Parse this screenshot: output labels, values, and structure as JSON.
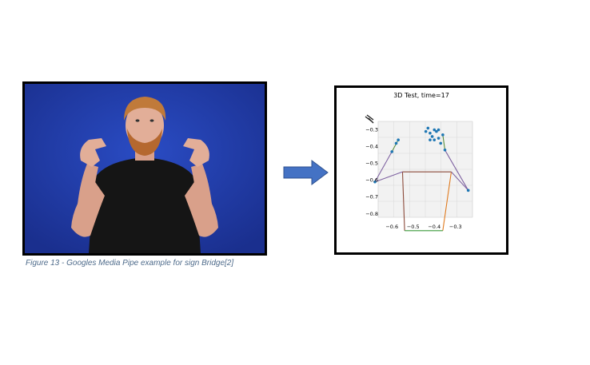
{
  "figure": {
    "caption": "Figure 13 - Googles Media Pipe example for sign Bridge[2]"
  },
  "photo": {
    "background_color": "#1e3aa6",
    "subject": "person-signing"
  },
  "arrow": {
    "color": "#4472c4",
    "icon": "right-arrow-icon"
  },
  "chart_data": {
    "type": "scatter",
    "title": "3D Test, time=17",
    "x_ticks": [
      "−0.6",
      "−0.5",
      "−0.4",
      "−0.3"
    ],
    "y_ticks": [
      "−0.3",
      "−0.4",
      "−0.5",
      "−0.6",
      "−0.7",
      "−0.8"
    ],
    "xlim": [
      -0.68,
      -0.22
    ],
    "ylim": [
      -0.82,
      -0.25
    ],
    "grid": true,
    "segments": [
      {
        "color": "#8064a2",
        "points": [
          [
            -0.68,
            -0.61
          ],
          [
            -0.6,
            -0.43
          ]
        ]
      },
      {
        "color": "#5a8f3c",
        "points": [
          [
            -0.6,
            -0.43
          ],
          [
            -0.57,
            -0.36
          ]
        ]
      },
      {
        "color": "#8064a2",
        "points": [
          [
            -0.35,
            -0.42
          ],
          [
            -0.24,
            -0.66
          ]
        ]
      },
      {
        "color": "#5a8f3c",
        "points": [
          [
            -0.36,
            -0.33
          ],
          [
            -0.35,
            -0.42
          ]
        ]
      },
      {
        "color": "#8b4a3a",
        "points": [
          [
            -0.55,
            -0.55
          ],
          [
            -0.32,
            -0.55
          ]
        ]
      },
      {
        "color": "#8b4a3a",
        "points": [
          [
            -0.55,
            -0.55
          ],
          [
            -0.54,
            -0.9
          ]
        ]
      },
      {
        "color": "#e07b20",
        "points": [
          [
            -0.32,
            -0.55
          ],
          [
            -0.36,
            -0.9
          ]
        ]
      },
      {
        "color": "#3a9a3a",
        "points": [
          [
            -0.54,
            -0.9
          ],
          [
            -0.36,
            -0.9
          ]
        ]
      },
      {
        "color": "#8064a2",
        "points": [
          [
            -0.55,
            -0.55
          ],
          [
            -0.68,
            -0.61
          ]
        ]
      },
      {
        "color": "#8064a2",
        "points": [
          [
            -0.32,
            -0.55
          ],
          [
            -0.24,
            -0.66
          ]
        ]
      }
    ],
    "points": [
      [
        -0.68,
        -0.61
      ],
      [
        -0.6,
        -0.43
      ],
      [
        -0.57,
        -0.36
      ],
      [
        -0.58,
        -0.38
      ],
      [
        -0.24,
        -0.66
      ],
      [
        -0.35,
        -0.42
      ],
      [
        -0.36,
        -0.33
      ],
      [
        -0.37,
        -0.38
      ],
      [
        -0.43,
        -0.29
      ],
      [
        -0.44,
        -0.31
      ],
      [
        -0.42,
        -0.32
      ],
      [
        -0.4,
        -0.3
      ],
      [
        -0.39,
        -0.31
      ],
      [
        -0.38,
        -0.3
      ],
      [
        -0.41,
        -0.34
      ],
      [
        -0.4,
        -0.36
      ],
      [
        -0.38,
        -0.35
      ],
      [
        -0.42,
        -0.36
      ]
    ],
    "point_color": "#1f77b4"
  }
}
